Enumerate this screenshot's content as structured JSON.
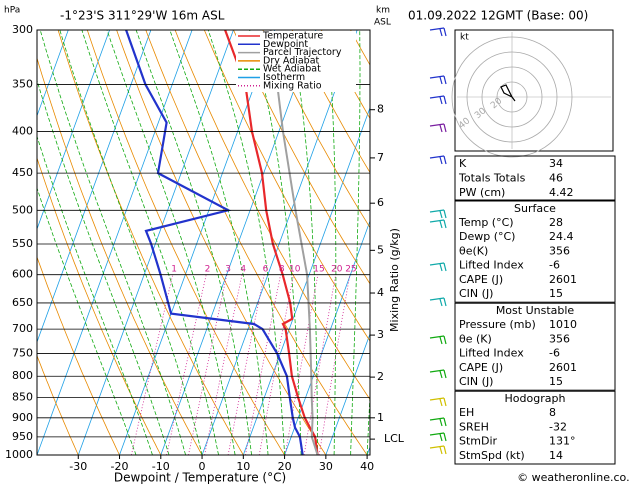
{
  "header": {
    "location": "-1°23'S 311°29'W 16m ASL",
    "datetime": "01.09.2022 12GMT (Base: 00)"
  },
  "chart_data": {
    "type": "skewt",
    "y_unit": "hPa",
    "km_unit": "km",
    "km_unit2": "ASL",
    "xlabel": "Dewpoint / Temperature (°C)",
    "mixing_ratio_label": "Mixing Ratio (g/kg)",
    "xlim": [
      -40,
      40.7
    ],
    "ylim": [
      1000,
      300
    ],
    "log_y": true,
    "xticks": [
      -30,
      -20,
      -10,
      0,
      10,
      20,
      30,
      40
    ],
    "yticks": [
      300,
      350,
      400,
      450,
      500,
      550,
      600,
      650,
      700,
      750,
      800,
      850,
      900,
      950,
      1000
    ],
    "km_ticks": [
      {
        "value": 900,
        "label": "1"
      },
      {
        "value": 802,
        "label": "2"
      },
      {
        "value": 712,
        "label": "3"
      },
      {
        "value": 632,
        "label": "4"
      },
      {
        "value": 560,
        "label": "5"
      },
      {
        "value": 490,
        "label": "6"
      },
      {
        "value": 431,
        "label": "7"
      },
      {
        "value": 376,
        "label": "8"
      }
    ],
    "lcl": {
      "value": 956,
      "label": "LCL"
    },
    "mixing_ratio_ticks": [
      1,
      2,
      3,
      4,
      6,
      8,
      10,
      15,
      20,
      25
    ],
    "series": [
      {
        "name": "Temperature",
        "color": "#e8282b",
        "pressure": [
          1000,
          950,
          925,
          900,
          850,
          800,
          750,
          700,
          690,
          680,
          650,
          600,
          550,
          500,
          450,
          400,
          350,
          300
        ],
        "values": [
          28,
          25.8,
          23.7,
          21.6,
          18.2,
          14.8,
          12.1,
          9.1,
          8,
          9.8,
          7.9,
          3.6,
          -1.5,
          -6.1,
          -10.4,
          -16.5,
          -22.3,
          -32
        ]
      },
      {
        "name": "Dewpoint",
        "color": "#2233cc",
        "pressure": [
          1000,
          950,
          925,
          900,
          850,
          800,
          750,
          700,
          690,
          670,
          600,
          550,
          530,
          500,
          450,
          390,
          350,
          300
        ],
        "values": [
          24.4,
          22.1,
          20.1,
          18.7,
          16.2,
          13.6,
          9.2,
          3.5,
          1,
          -20,
          -26,
          -31,
          -33.4,
          -15.3,
          -35.6,
          -38,
          -46.5,
          -56
        ]
      },
      {
        "name": "Parcel Trajectory",
        "color": "#a0a0a0",
        "pressure": [
          1000,
          950,
          900,
          850,
          800,
          700,
          600,
          500,
          400,
          300
        ],
        "values": [
          28,
          25,
          23.5,
          21.5,
          19.5,
          15,
          9.5,
          1,
          -9,
          -21
        ]
      }
    ],
    "legend_extra": [
      {
        "name": "Dry Adiabat",
        "color": "#e88a00"
      },
      {
        "name": "Wet Adiabat",
        "color": "#11aa11"
      },
      {
        "name": "Isotherm",
        "color": "#1ea0e6"
      },
      {
        "name": "Mixing Ratio",
        "color": "#d02090"
      }
    ]
  },
  "hodograph": {
    "unit": "kt",
    "rings": [
      "20",
      "30",
      "40"
    ]
  },
  "indices": {
    "top": [
      [
        "K",
        "34"
      ],
      [
        "Totals Totals",
        "46"
      ],
      [
        "PW (cm)",
        "4.42"
      ]
    ],
    "surface": {
      "title": "Surface",
      "rows": [
        [
          "Temp (°C)",
          "28"
        ],
        [
          "Dewp (°C)",
          "24.4"
        ],
        [
          "θe(K)",
          "356"
        ],
        [
          "Lifted Index",
          "-6"
        ],
        [
          "CAPE (J)",
          "2601"
        ],
        [
          "CIN (J)",
          "15"
        ]
      ]
    },
    "unstable": {
      "title": "Most Unstable",
      "rows": [
        [
          "Pressure (mb)",
          "1010"
        ],
        [
          "θe (K)",
          "356"
        ],
        [
          "Lifted Index",
          "-6"
        ],
        [
          "CAPE (J)",
          "2601"
        ],
        [
          "CIN (J)",
          "15"
        ]
      ]
    },
    "hodo": {
      "title": "Hodograph",
      "rows": [
        [
          "EH",
          "8"
        ],
        [
          "SREH",
          "-32"
        ],
        [
          "StmDir",
          "131°"
        ],
        [
          "StmSpd (kt)",
          "14"
        ]
      ]
    }
  },
  "footer": "© weatheronline.co.uk"
}
